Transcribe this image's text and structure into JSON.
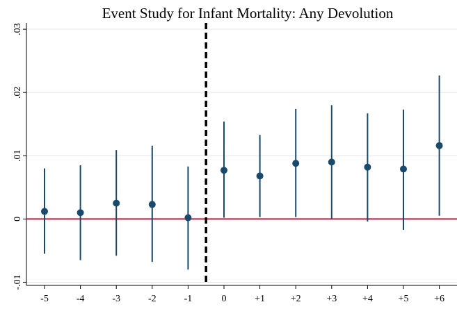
{
  "chart_data": {
    "type": "scatter",
    "title": "Event Study for Infant Mortality: Any Devolution",
    "xlabel": "",
    "ylabel": "",
    "categories": [
      "-5",
      "-4",
      "-3",
      "-2",
      "-1",
      "0",
      "+1",
      "+2",
      "+3",
      "+4",
      "+5",
      "+6"
    ],
    "series": [
      {
        "values": [
          0.0012,
          0.001,
          0.0025,
          0.0023,
          0.0002,
          0.0077,
          0.0068,
          0.0088,
          0.009,
          0.0082,
          0.0079,
          0.0116
        ],
        "ci_lower": [
          -0.0055,
          -0.0065,
          -0.0058,
          -0.0068,
          -0.008,
          0.0002,
          0.0003,
          0.0003,
          0.0001,
          -0.0004,
          -0.0017,
          0.0005
        ],
        "ci_upper": [
          0.008,
          0.0085,
          0.0109,
          0.0116,
          0.0083,
          0.0154,
          0.0133,
          0.0174,
          0.018,
          0.0167,
          0.0173,
          0.0227
        ],
        "color": "#1a4a6b"
      }
    ],
    "ylim": [
      -0.0105,
      0.031
    ],
    "yticks": [
      -0.01,
      0,
      0.01,
      0.02,
      0.03
    ],
    "ytick_labels": [
      "-.01",
      "0",
      ".01",
      ".02",
      ".03"
    ],
    "grid": true,
    "reference_lines": {
      "horizontal_y": 0,
      "horizontal_color": "#b0213f",
      "vertical_between": [
        "-1",
        "0"
      ],
      "vertical_style": "dashed",
      "vertical_color": "#000000"
    }
  }
}
